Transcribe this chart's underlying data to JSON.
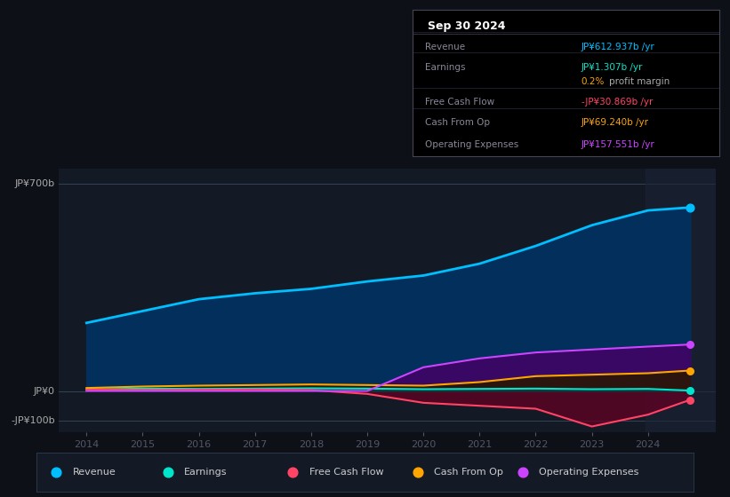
{
  "background_color": "#0d1117",
  "plot_bg_color": "#131a25",
  "years": [
    2014,
    2015,
    2016,
    2017,
    2018,
    2019,
    2020,
    2021,
    2022,
    2023,
    2024,
    2024.75
  ],
  "revenue": [
    230,
    270,
    310,
    330,
    345,
    370,
    390,
    430,
    490,
    560,
    610,
    620
  ],
  "earnings": [
    5,
    8,
    7,
    8,
    9,
    8,
    6,
    7,
    8,
    6,
    7,
    1.307
  ],
  "free_cash_flow": [
    5,
    3,
    4,
    5,
    3,
    -10,
    -40,
    -50,
    -60,
    -120,
    -80,
    -30
  ],
  "cash_from_op": [
    10,
    15,
    18,
    20,
    22,
    20,
    18,
    30,
    50,
    55,
    60,
    69
  ],
  "operating_expenses": [
    0,
    0,
    0,
    0,
    0,
    0,
    80,
    110,
    130,
    140,
    150,
    157
  ],
  "revenue_color": "#00bfff",
  "earnings_color": "#00e5cc",
  "free_cash_flow_color": "#ff4466",
  "cash_from_op_color": "#ffa500",
  "operating_expenses_color": "#cc44ff",
  "revenue_fill": "#003366",
  "earnings_fill": "#004444",
  "free_cash_flow_fill": "#660022",
  "cash_from_op_fill": "#2a1800",
  "operating_expenses_fill": "#440066",
  "ylim_min": -140,
  "ylim_max": 750,
  "legend_items": [
    {
      "label": "Revenue",
      "color": "#00bfff"
    },
    {
      "label": "Earnings",
      "color": "#00e5cc"
    },
    {
      "label": "Free Cash Flow",
      "color": "#ff4466"
    },
    {
      "label": "Cash From Op",
      "color": "#ffa500"
    },
    {
      "label": "Operating Expenses",
      "color": "#cc44ff"
    }
  ]
}
